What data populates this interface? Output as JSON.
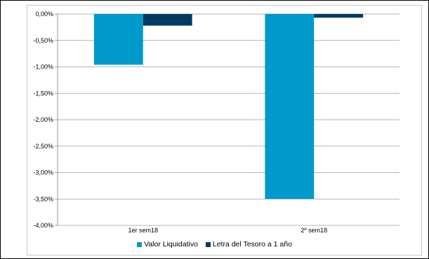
{
  "chart_data": {
    "type": "bar",
    "categories": [
      "1er sem18",
      "2º sem18"
    ],
    "series": [
      {
        "name": "Valor Liquidativo",
        "values": [
          -0.96,
          -3.5
        ],
        "color": "#0099cc"
      },
      {
        "name": "Letra del Tesoro a 1 año",
        "values": [
          -0.22,
          -0.07
        ],
        "color": "#003a63"
      }
    ],
    "ylim": [
      -4.0,
      0.0
    ],
    "yticks": [
      "0,00%",
      "-0,50%",
      "-1,00%",
      "-1,50%",
      "-2,00%",
      "-2,50%",
      "-3,00%",
      "-3,50%",
      "-4,00%"
    ],
    "grid": true,
    "legend_position": "bottom"
  }
}
